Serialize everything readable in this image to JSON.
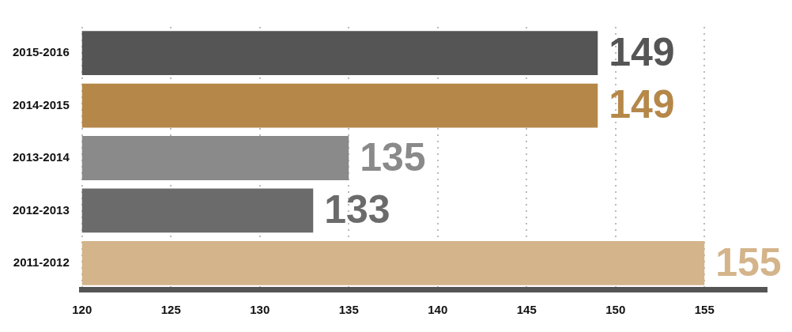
{
  "chart_data": {
    "type": "bar",
    "orientation": "horizontal",
    "categories": [
      "2015-2016",
      "2014-2015",
      "2013-2014",
      "2012-2013",
      "2011-2012"
    ],
    "values": [
      149,
      149,
      135,
      133,
      155
    ],
    "colors": [
      "#555555",
      "#b5884a",
      "#8a8a8a",
      "#6b6b6b",
      "#d4b48a"
    ],
    "xlim": [
      120,
      158.5
    ],
    "xticks": [
      120,
      125,
      130,
      135,
      140,
      145,
      150,
      155
    ],
    "grid": "x",
    "data_labels": true,
    "legend": false
  }
}
